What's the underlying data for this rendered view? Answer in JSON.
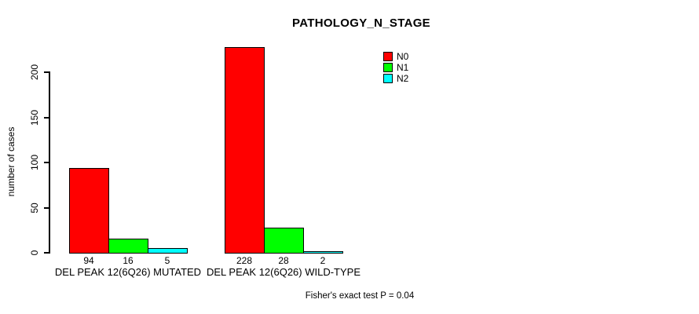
{
  "chart_data": {
    "type": "bar",
    "title": "PATHOLOGY_N_STAGE",
    "ylabel": "number of cases",
    "xlabel": "",
    "categories": [
      "DEL PEAK 12(6Q26) MUTATED",
      "DEL PEAK 12(6Q26) WILD-TYPE"
    ],
    "series": [
      {
        "name": "N0",
        "color": "#ff0000",
        "values": [
          94,
          228
        ]
      },
      {
        "name": "N1",
        "color": "#00ff00",
        "values": [
          16,
          28
        ]
      },
      {
        "name": "N2",
        "color": "#00ffff",
        "values": [
          5,
          2
        ]
      }
    ],
    "yticks": [
      0,
      50,
      100,
      150,
      200
    ],
    "ylim": [
      0,
      200
    ],
    "grid": false,
    "legend": {
      "position": "top-right",
      "entries": [
        "N0",
        "N1",
        "N2"
      ]
    },
    "bar_border_color": "#000000",
    "annotation": "Fisher's exact test P = 0.04"
  }
}
